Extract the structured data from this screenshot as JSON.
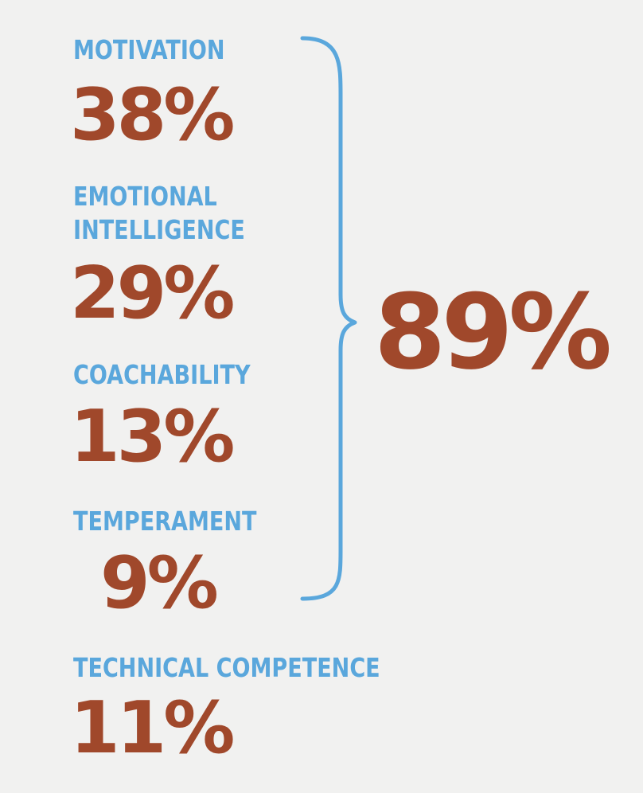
{
  "factors": [
    {
      "label": "MOTIVATION",
      "value": "38%"
    },
    {
      "label_lines": [
        "EMOTIONAL",
        "INTELLIGENCE"
      ],
      "value": "29%"
    },
    {
      "label": "COACHABILITY",
      "value": "13%"
    },
    {
      "label": "TEMPERAMENT",
      "value": "9%"
    },
    {
      "label": "TECHNICAL COMPETENCE",
      "value": "11%"
    }
  ],
  "bracketed_total": "89%",
  "colors": {
    "background": "#f1f1f0",
    "label": "#5aa7dc",
    "value": "#a0482b",
    "brace": "#5aa7dc"
  }
}
